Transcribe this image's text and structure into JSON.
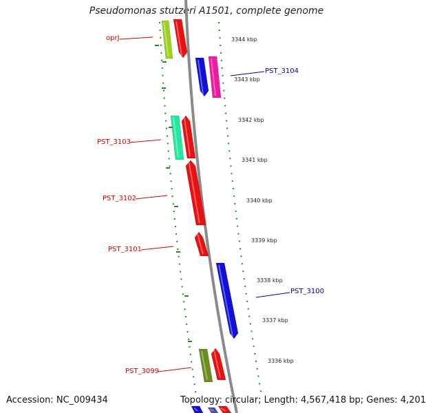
{
  "title": "Pseudomonas stutzeri A1501, complete genome",
  "accession": "Accession: NC_009434",
  "topology": "Topology: circular; Length: 4,567,418 bp; Genes: 4,201",
  "colors": {
    "backbone": "#8a8a8a",
    "dots": "#1e8a1e",
    "label_forward": "#cc0000",
    "label_reverse": "#0000aa"
  },
  "ticks": [
    "3344 kbp",
    "3343 kbp",
    "3342 kbp",
    "3341 kbp",
    "3340 kbp",
    "3339 kbp",
    "3338 kbp",
    "3337 kbp",
    "3336 kbp"
  ],
  "gene_labels": [
    {
      "text": "oprJ",
      "strand": "forward"
    },
    {
      "text": "PST_3104",
      "strand": "reverse"
    },
    {
      "text": "PST_3103",
      "strand": "forward"
    },
    {
      "text": "PST_3102",
      "strand": "forward"
    },
    {
      "text": "PST_3101",
      "strand": "forward"
    },
    {
      "text": "PST_3100",
      "strand": "reverse"
    },
    {
      "text": "PST_3099",
      "strand": "forward"
    }
  ],
  "gene_blocks": [
    {
      "color": "#9ad21e"
    },
    {
      "color": "#e81010"
    },
    {
      "color": "#1010d8"
    },
    {
      "color": "#ee1aa0"
    },
    {
      "color": "#22e8a0"
    },
    {
      "color": "#e81010"
    },
    {
      "color": "#e81010"
    },
    {
      "color": "#e81010"
    },
    {
      "color": "#1010d8"
    },
    {
      "color": "#6a8e1e"
    },
    {
      "color": "#e81010"
    },
    {
      "color": "#1010d8"
    },
    {
      "color": "#e81010"
    },
    {
      "color": "#5050a0"
    }
  ]
}
